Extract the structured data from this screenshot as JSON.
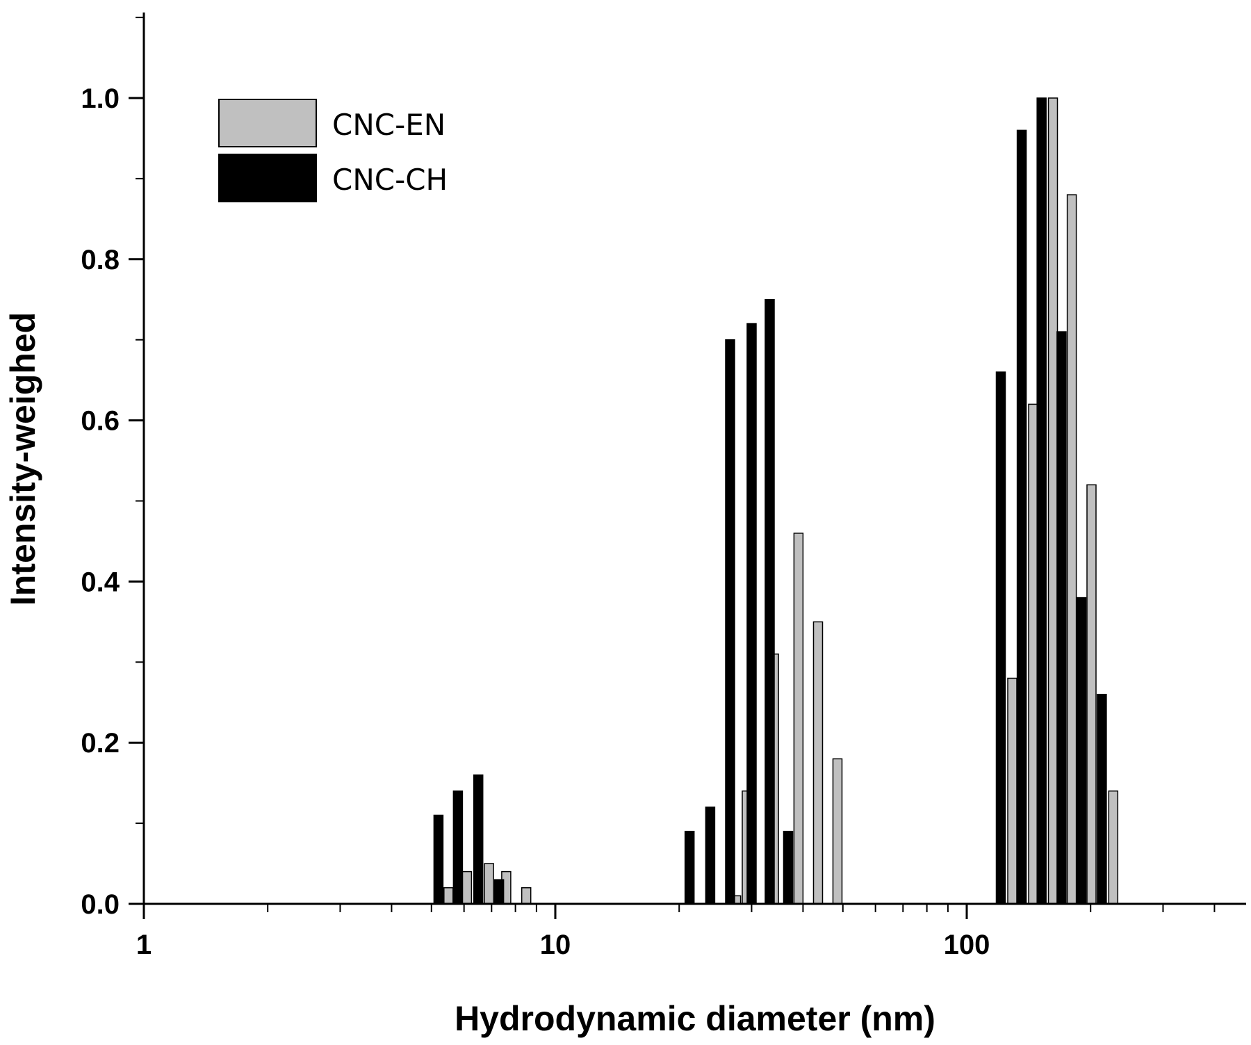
{
  "chart_data": {
    "type": "bar",
    "xlabel": "Hydrodynamic diameter (nm)",
    "ylabel": "Intensity-weighed",
    "x_scale": "log",
    "xlim": [
      1,
      550
    ],
    "ylim": [
      0,
      1.1
    ],
    "x_ticks": [
      "1",
      "10",
      "100"
    ],
    "y_ticks": [
      "0.0",
      "0.2",
      "0.4",
      "0.6",
      "0.8",
      "1.0"
    ],
    "grid": false,
    "legend_position": "top-left",
    "series": [
      {
        "name": "CNC-EN",
        "color": "#c0c0c0",
        "points": [
          {
            "x": 5.5,
            "y": 0.02
          },
          {
            "x": 6.1,
            "y": 0.04
          },
          {
            "x": 6.9,
            "y": 0.05
          },
          {
            "x": 7.6,
            "y": 0.04
          },
          {
            "x": 8.5,
            "y": 0.02
          },
          {
            "x": 27.5,
            "y": 0.01
          },
          {
            "x": 29.2,
            "y": 0.14
          },
          {
            "x": 34.0,
            "y": 0.31
          },
          {
            "x": 39.0,
            "y": 0.46
          },
          {
            "x": 43.5,
            "y": 0.35
          },
          {
            "x": 48.5,
            "y": 0.18
          },
          {
            "x": 129,
            "y": 0.28
          },
          {
            "x": 145,
            "y": 0.62
          },
          {
            "x": 162,
            "y": 1.0
          },
          {
            "x": 180,
            "y": 0.88
          },
          {
            "x": 201,
            "y": 0.52
          },
          {
            "x": 227,
            "y": 0.14
          }
        ]
      },
      {
        "name": "CNC-CH",
        "color": "#000000",
        "points": [
          {
            "x": 5.2,
            "y": 0.11
          },
          {
            "x": 5.8,
            "y": 0.14
          },
          {
            "x": 6.5,
            "y": 0.16
          },
          {
            "x": 7.3,
            "y": 0.03
          },
          {
            "x": 21.2,
            "y": 0.09
          },
          {
            "x": 23.8,
            "y": 0.12
          },
          {
            "x": 26.6,
            "y": 0.7
          },
          {
            "x": 30.0,
            "y": 0.72
          },
          {
            "x": 33.2,
            "y": 0.75
          },
          {
            "x": 36.8,
            "y": 0.09
          },
          {
            "x": 121,
            "y": 0.66
          },
          {
            "x": 136,
            "y": 0.96
          },
          {
            "x": 152,
            "y": 1.0
          },
          {
            "x": 170,
            "y": 0.71
          },
          {
            "x": 190,
            "y": 0.38
          },
          {
            "x": 213,
            "y": 0.26
          }
        ]
      }
    ]
  }
}
